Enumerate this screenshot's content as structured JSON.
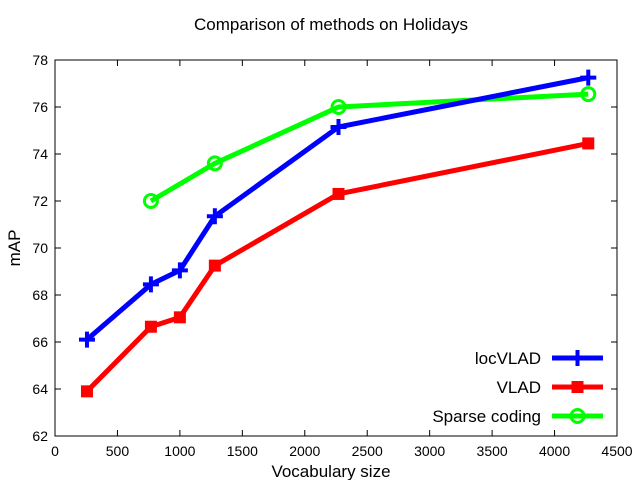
{
  "chart_data": {
    "type": "line",
    "title": "Comparison of methods on Holidays",
    "xlabel": "Vocabulary size",
    "ylabel": "mAP",
    "xlim": [
      0,
      4500
    ],
    "ylim": [
      62,
      78
    ],
    "xticks": [
      0,
      500,
      1000,
      1500,
      2000,
      2500,
      3000,
      3500,
      4000,
      4500
    ],
    "yticks": [
      62,
      64,
      66,
      68,
      70,
      72,
      74,
      76,
      78
    ],
    "grid": false,
    "legend_position": "bottom-right",
    "series": [
      {
        "name": "locVLAD",
        "color": "#0000ff",
        "marker": "plus",
        "x": [
          256,
          768,
          1000,
          1280,
          2270,
          4270
        ],
        "y": [
          66.1,
          68.45,
          69.05,
          71.35,
          75.15,
          77.25
        ]
      },
      {
        "name": "VLAD",
        "color": "#ff0000",
        "marker": "square",
        "x": [
          256,
          768,
          1000,
          1280,
          2270,
          4270
        ],
        "y": [
          63.9,
          66.65,
          67.05,
          69.25,
          72.3,
          74.45
        ]
      },
      {
        "name": "Sparse coding",
        "color": "#00ff00",
        "marker": "circle",
        "x": [
          768,
          1280,
          2270,
          4270
        ],
        "y": [
          72.0,
          73.6,
          76.0,
          76.55
        ]
      }
    ]
  }
}
